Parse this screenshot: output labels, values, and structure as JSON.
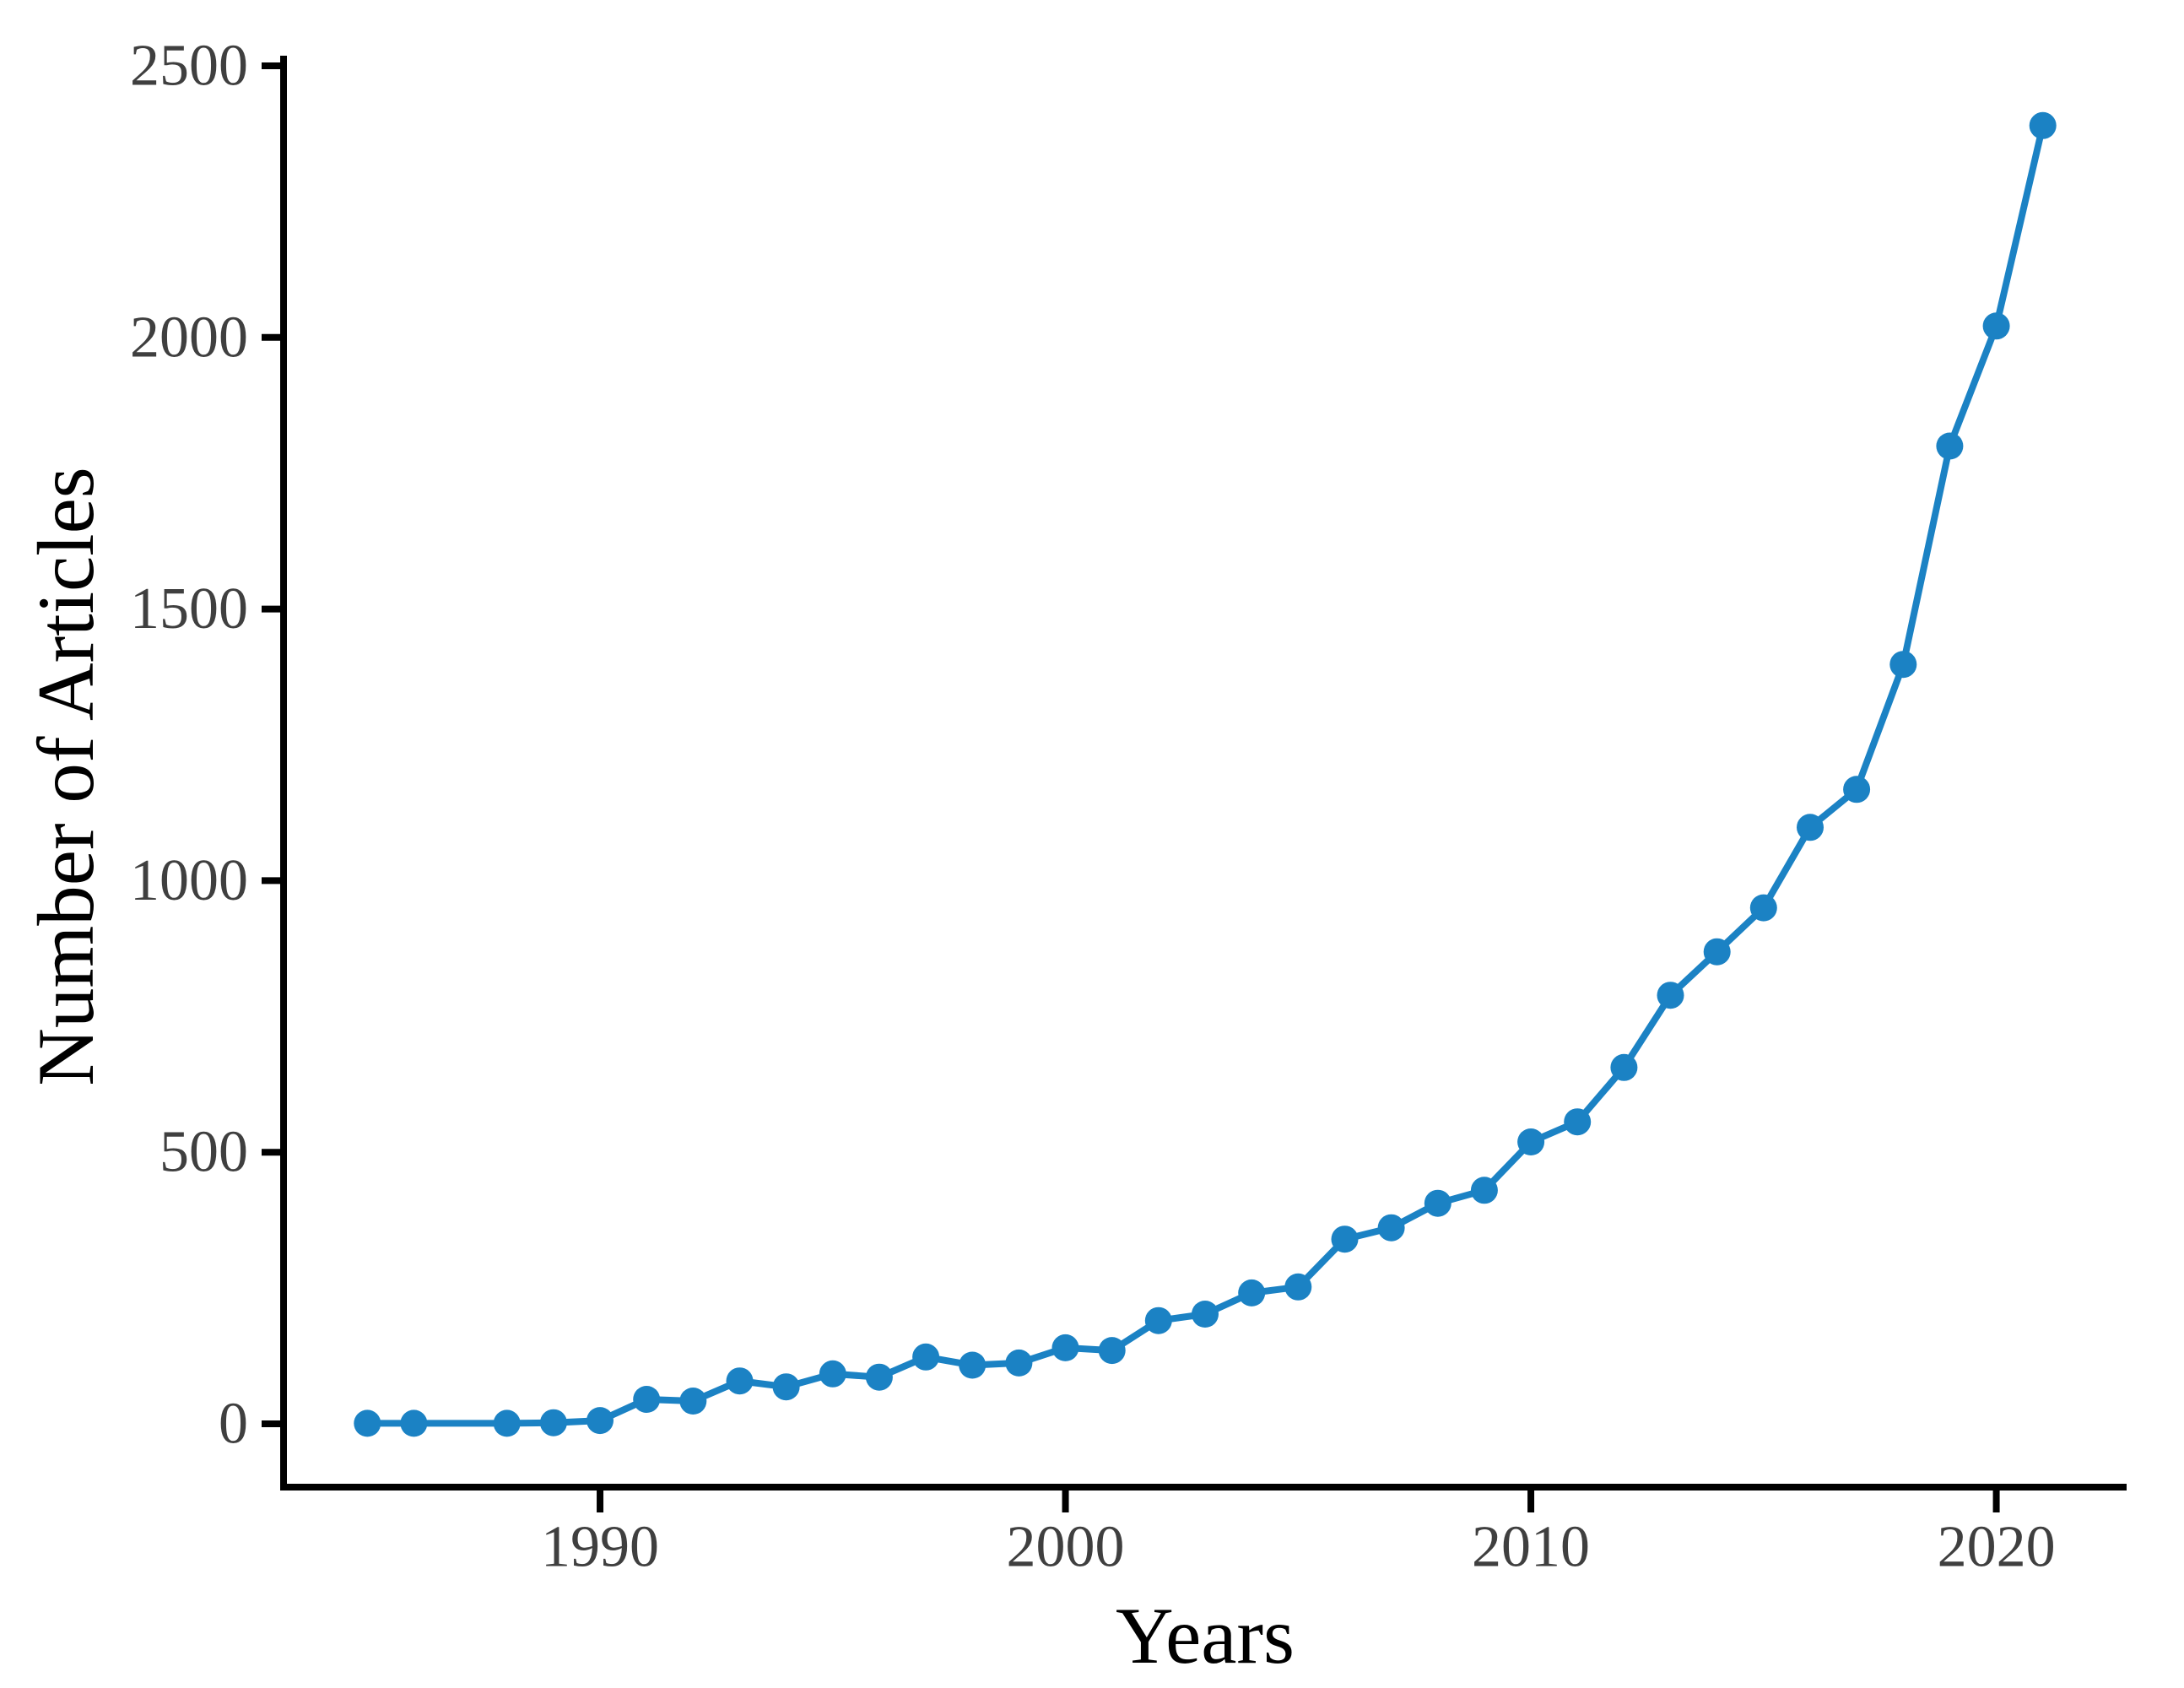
{
  "chart_data": {
    "type": "line",
    "title": "",
    "xlabel": "Years",
    "ylabel": "Number of Articles",
    "series": [
      {
        "name": "Number of Articles",
        "points": [
          [
            1985,
            1
          ],
          [
            1986,
            1
          ],
          [
            1988,
            1
          ],
          [
            1989,
            2
          ],
          [
            1990,
            6
          ],
          [
            1991,
            45
          ],
          [
            1992,
            42
          ],
          [
            1993,
            79
          ],
          [
            1994,
            68
          ],
          [
            1995,
            92
          ],
          [
            1996,
            86
          ],
          [
            1997,
            123
          ],
          [
            1998,
            108
          ],
          [
            1999,
            112
          ],
          [
            2000,
            140
          ],
          [
            2001,
            135
          ],
          [
            2002,
            190
          ],
          [
            2003,
            202
          ],
          [
            2004,
            241
          ],
          [
            2005,
            252
          ],
          [
            2006,
            340
          ],
          [
            2007,
            361
          ],
          [
            2008,
            406
          ],
          [
            2009,
            430
          ],
          [
            2010,
            519
          ],
          [
            2011,
            556
          ],
          [
            2012,
            656
          ],
          [
            2013,
            789
          ],
          [
            2014,
            869
          ],
          [
            2015,
            950
          ],
          [
            2016,
            1098
          ],
          [
            2017,
            1168
          ],
          [
            2018,
            1398
          ],
          [
            2019,
            1800
          ],
          [
            2020,
            2021
          ],
          [
            2021,
            2390
          ]
        ]
      }
    ],
    "x_ticks": [
      1990,
      2000,
      2010,
      2020
    ],
    "y_ticks": [
      0,
      500,
      1000,
      1500,
      2000,
      2500
    ],
    "xlim": [
      1983.2,
      2022.8
    ],
    "ylim": [
      0,
      2500
    ],
    "grid": false,
    "legend_position": "none",
    "marker": "circle",
    "colors": {
      "line": "#1b82c4",
      "point": "#1b82c4",
      "axis": "#000000",
      "tick_label": "#3f3f3f",
      "axis_title": "#000000",
      "background": "#ffffff"
    }
  }
}
